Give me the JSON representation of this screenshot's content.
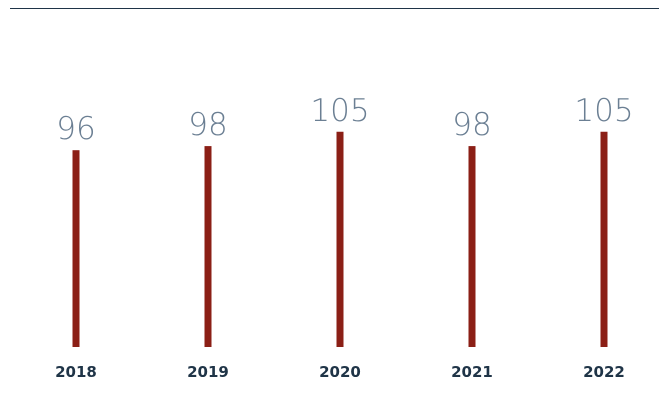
{
  "chart_data": {
    "type": "bar",
    "title": "",
    "xlabel": "",
    "ylabel": "",
    "categories": [
      "2018",
      "2019",
      "2020",
      "2021",
      "2022"
    ],
    "values": [
      96,
      98,
      105,
      98,
      105
    ],
    "data_labels": [
      "96",
      "98",
      "105",
      "98",
      "105"
    ],
    "legend": "none",
    "grid": false
  },
  "colors": {
    "bar": "#8b1f16",
    "value_label": "#6b7f93",
    "category_label": "#1f3447",
    "top_rule": "#1f3447"
  }
}
